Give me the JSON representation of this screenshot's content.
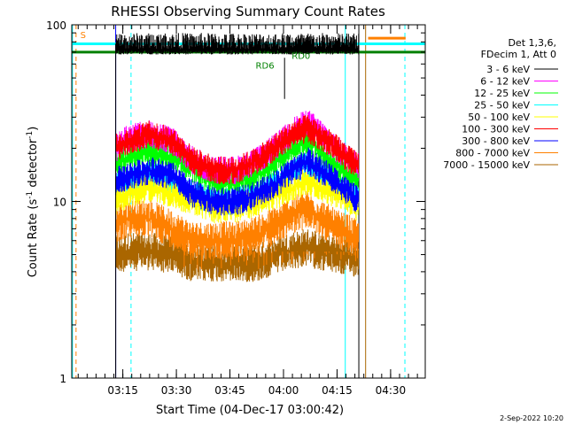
{
  "chart_data": {
    "type": "line",
    "title": "RHESSI Observing Summary Count Rates",
    "xlabel": "Start Time (04-Dec-17 03:00:42)",
    "ylabel_main": "Count Rate (s",
    "ylabel_sup1": "-1",
    "ylabel_mid": " detector",
    "ylabel_sup2": "-1",
    "ylabel_end": ")",
    "yscale": "log",
    "ylim": [
      1,
      100
    ],
    "xlim_minutes": [
      0,
      99
    ],
    "y_ticks": [
      {
        "value": 1,
        "label": "1"
      },
      {
        "value": 10,
        "label": "10"
      },
      {
        "value": 100,
        "label": "100"
      }
    ],
    "x_ticks": [
      {
        "min": 14.3,
        "label": "03:15"
      },
      {
        "min": 29.3,
        "label": "03:30"
      },
      {
        "min": 44.3,
        "label": "03:45"
      },
      {
        "min": 59.3,
        "label": "04:00"
      },
      {
        "min": 74.3,
        "label": "04:15"
      },
      {
        "min": 89.3,
        "label": "04:30"
      }
    ],
    "legend_header": [
      "Det 1,3,6,",
      "FDecim 1, Att 0"
    ],
    "series": [
      {
        "name": "3 - 6 keV",
        "color": "#000000",
        "baseline": [
          [
            12.3,
            70
          ],
          [
            99,
            70
          ]
        ],
        "peak": 90
      },
      {
        "name": "6 - 12 keV",
        "color": "#ff00ff",
        "x_range": [
          12.3,
          80.4
        ],
        "profile": [
          [
            12.3,
            20
          ],
          [
            16,
            23
          ],
          [
            22,
            24
          ],
          [
            28,
            22
          ],
          [
            34,
            17
          ],
          [
            40,
            15
          ],
          [
            46,
            15
          ],
          [
            52,
            17
          ],
          [
            58,
            21
          ],
          [
            62,
            25
          ],
          [
            66,
            28
          ],
          [
            70,
            24
          ],
          [
            74,
            20
          ],
          [
            78,
            17
          ],
          [
            80.4,
            16
          ]
        ]
      },
      {
        "name": "12 - 25 keV",
        "color": "#00ff00",
        "x_range": [
          12.3,
          80.4
        ],
        "profile": [
          [
            12.3,
            16
          ],
          [
            16,
            18
          ],
          [
            22,
            19
          ],
          [
            28,
            18
          ],
          [
            34,
            15
          ],
          [
            40,
            13
          ],
          [
            46,
            13
          ],
          [
            52,
            14
          ],
          [
            58,
            17
          ],
          [
            62,
            20
          ],
          [
            66,
            22
          ],
          [
            70,
            19
          ],
          [
            74,
            16
          ],
          [
            78,
            14
          ],
          [
            80.4,
            13
          ]
        ]
      },
      {
        "name": "25 - 50 keV",
        "color": "#00ffff",
        "x_range": [
          12.3,
          80.4
        ],
        "profile": [
          [
            12.3,
            12
          ],
          [
            16,
            13
          ],
          [
            22,
            14
          ],
          [
            28,
            13
          ],
          [
            34,
            11
          ],
          [
            40,
            10
          ],
          [
            46,
            10
          ],
          [
            52,
            11
          ],
          [
            58,
            13
          ],
          [
            62,
            15
          ],
          [
            66,
            16
          ],
          [
            70,
            14
          ],
          [
            74,
            12
          ],
          [
            78,
            11
          ],
          [
            80.4,
            10
          ]
        ]
      },
      {
        "name": "50 - 100 keV",
        "color": "#ffff00",
        "x_range": [
          12.3,
          80.4
        ],
        "profile": [
          [
            12.3,
            10
          ],
          [
            16,
            11
          ],
          [
            22,
            12
          ],
          [
            28,
            11
          ],
          [
            34,
            10
          ],
          [
            40,
            9
          ],
          [
            46,
            9
          ],
          [
            52,
            10
          ],
          [
            58,
            11
          ],
          [
            62,
            12
          ],
          [
            66,
            13
          ],
          [
            70,
            12
          ],
          [
            74,
            11
          ],
          [
            78,
            10
          ],
          [
            80.4,
            9
          ]
        ]
      },
      {
        "name": "100 - 300 keV",
        "color": "#ff0000",
        "x_range": [
          12.3,
          80.4
        ],
        "profile": [
          [
            12.3,
            20
          ],
          [
            16,
            22
          ],
          [
            22,
            24
          ],
          [
            28,
            22
          ],
          [
            34,
            17
          ],
          [
            40,
            15
          ],
          [
            46,
            15
          ],
          [
            52,
            17
          ],
          [
            58,
            21
          ],
          [
            62,
            24
          ],
          [
            66,
            26
          ],
          [
            70,
            23
          ],
          [
            74,
            20
          ],
          [
            78,
            17
          ],
          [
            80.4,
            16
          ]
        ]
      },
      {
        "name": "300 - 800 keV",
        "color": "#0000ff",
        "x_range": [
          12.3,
          80.4
        ],
        "profile": [
          [
            12.3,
            13
          ],
          [
            16,
            14
          ],
          [
            22,
            15
          ],
          [
            28,
            14
          ],
          [
            34,
            11
          ],
          [
            40,
            10
          ],
          [
            46,
            10
          ],
          [
            52,
            11
          ],
          [
            58,
            13
          ],
          [
            62,
            15
          ],
          [
            66,
            17
          ],
          [
            70,
            15
          ],
          [
            74,
            13
          ],
          [
            78,
            11
          ],
          [
            80.4,
            10
          ]
        ]
      },
      {
        "name": "800 - 7000 keV",
        "color": "#ff8000",
        "x_range": [
          12.3,
          80.4
        ],
        "profile": [
          [
            12.3,
            7.5
          ],
          [
            16,
            8
          ],
          [
            22,
            8
          ],
          [
            28,
            7
          ],
          [
            34,
            6
          ],
          [
            40,
            6
          ],
          [
            46,
            6
          ],
          [
            52,
            6.5
          ],
          [
            58,
            7.5
          ],
          [
            62,
            8.5
          ],
          [
            66,
            9
          ],
          [
            70,
            8
          ],
          [
            74,
            7
          ],
          [
            78,
            6.5
          ],
          [
            80.4,
            6
          ]
        ]
      },
      {
        "name": "7000 - 15000 keV",
        "color": "#aa6600",
        "x_range": [
          12.3,
          80.4
        ],
        "profile": [
          [
            12.3,
            5
          ],
          [
            16,
            5.2
          ],
          [
            22,
            5.2
          ],
          [
            28,
            5
          ],
          [
            34,
            4.5
          ],
          [
            40,
            4.5
          ],
          [
            46,
            4.5
          ],
          [
            52,
            4.5
          ],
          [
            58,
            5
          ],
          [
            62,
            5.3
          ],
          [
            66,
            5.5
          ],
          [
            70,
            5.2
          ],
          [
            74,
            5
          ],
          [
            78,
            4.8
          ],
          [
            80.4,
            4.8
          ]
        ]
      }
    ],
    "vertical_lines": [
      {
        "min": 0.2,
        "color": "#00ffff",
        "style": "solid"
      },
      {
        "min": 1.2,
        "color": "#ff8000",
        "style": "dashed"
      },
      {
        "min": 12.3,
        "color": "#0000ff",
        "style": "solid"
      },
      {
        "min": 16.6,
        "color": "#00ffff",
        "style": "dashed"
      },
      {
        "min": 76.6,
        "color": "#00ffff",
        "style": "solid"
      },
      {
        "min": 80.4,
        "color": "#000000",
        "style": "solid"
      },
      {
        "min": 82.3,
        "color": "#aa6600",
        "style": "solid"
      },
      {
        "min": 93.3,
        "color": "#00ffff",
        "style": "dashed"
      }
    ],
    "horizontal_bars": [
      {
        "x_range": [
          0,
          99
        ],
        "y": 78,
        "color": "#00ffff"
      },
      {
        "x_range": [
          0,
          99
        ],
        "y": 70,
        "color": "#008000"
      },
      {
        "x_range": [
          83,
          93.5
        ],
        "y": 84,
        "color": "#ff8000"
      }
    ],
    "annotations": [
      {
        "text": "S",
        "color": "#ff8000",
        "x_min": 2.4,
        "y": 88
      },
      {
        "text": "RD0",
        "color": "#008000",
        "x_min": 61.6,
        "y": 67
      },
      {
        "text": "RD6",
        "color": "#008000",
        "x_min": 51.5,
        "y": 59
      }
    ],
    "timestamp": "2-Sep-2022 10:20"
  }
}
